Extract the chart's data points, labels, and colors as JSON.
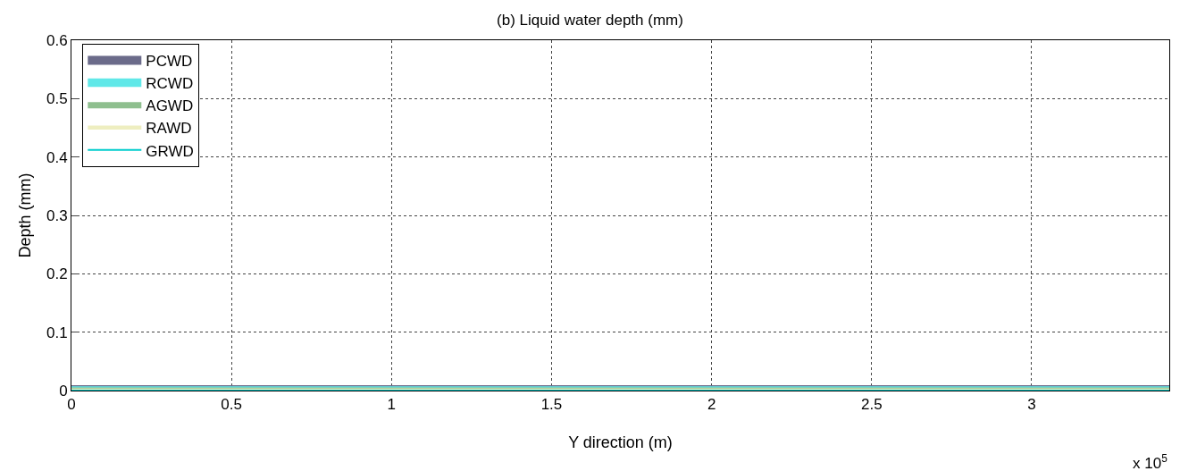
{
  "chart_data": {
    "type": "line",
    "title": "(b) Liquid water depth (mm)",
    "xlabel": "Y direction (m)",
    "ylabel": "Depth (mm)",
    "x": [
      0,
      3.43
    ],
    "series": [
      {
        "name": "PCWD",
        "color": "#6b6b8a",
        "values": [
          0,
          0
        ]
      },
      {
        "name": "RCWD",
        "color": "#60e8e8",
        "values": [
          0,
          0
        ]
      },
      {
        "name": "AGWD",
        "color": "#8fbf8f",
        "values": [
          0,
          0
        ]
      },
      {
        "name": "RAWD",
        "color": "#eeeec0",
        "values": [
          0,
          0
        ]
      },
      {
        "name": "GRWD",
        "color": "#00cccc",
        "values": [
          0,
          0
        ]
      }
    ],
    "xlim": [
      0,
      3.43
    ],
    "xticks": [
      0,
      0.5,
      1,
      1.5,
      2,
      2.5,
      3
    ],
    "ylim": [
      0,
      0.6
    ],
    "yticks": [
      0,
      0.1,
      0.2,
      0.3,
      0.4,
      0.5,
      0.6
    ],
    "annotations": [
      "x 10$^{5}$"
    ],
    "grid": true,
    "legend": "top left",
    "marker": "none",
    "line_style": "solid"
  }
}
